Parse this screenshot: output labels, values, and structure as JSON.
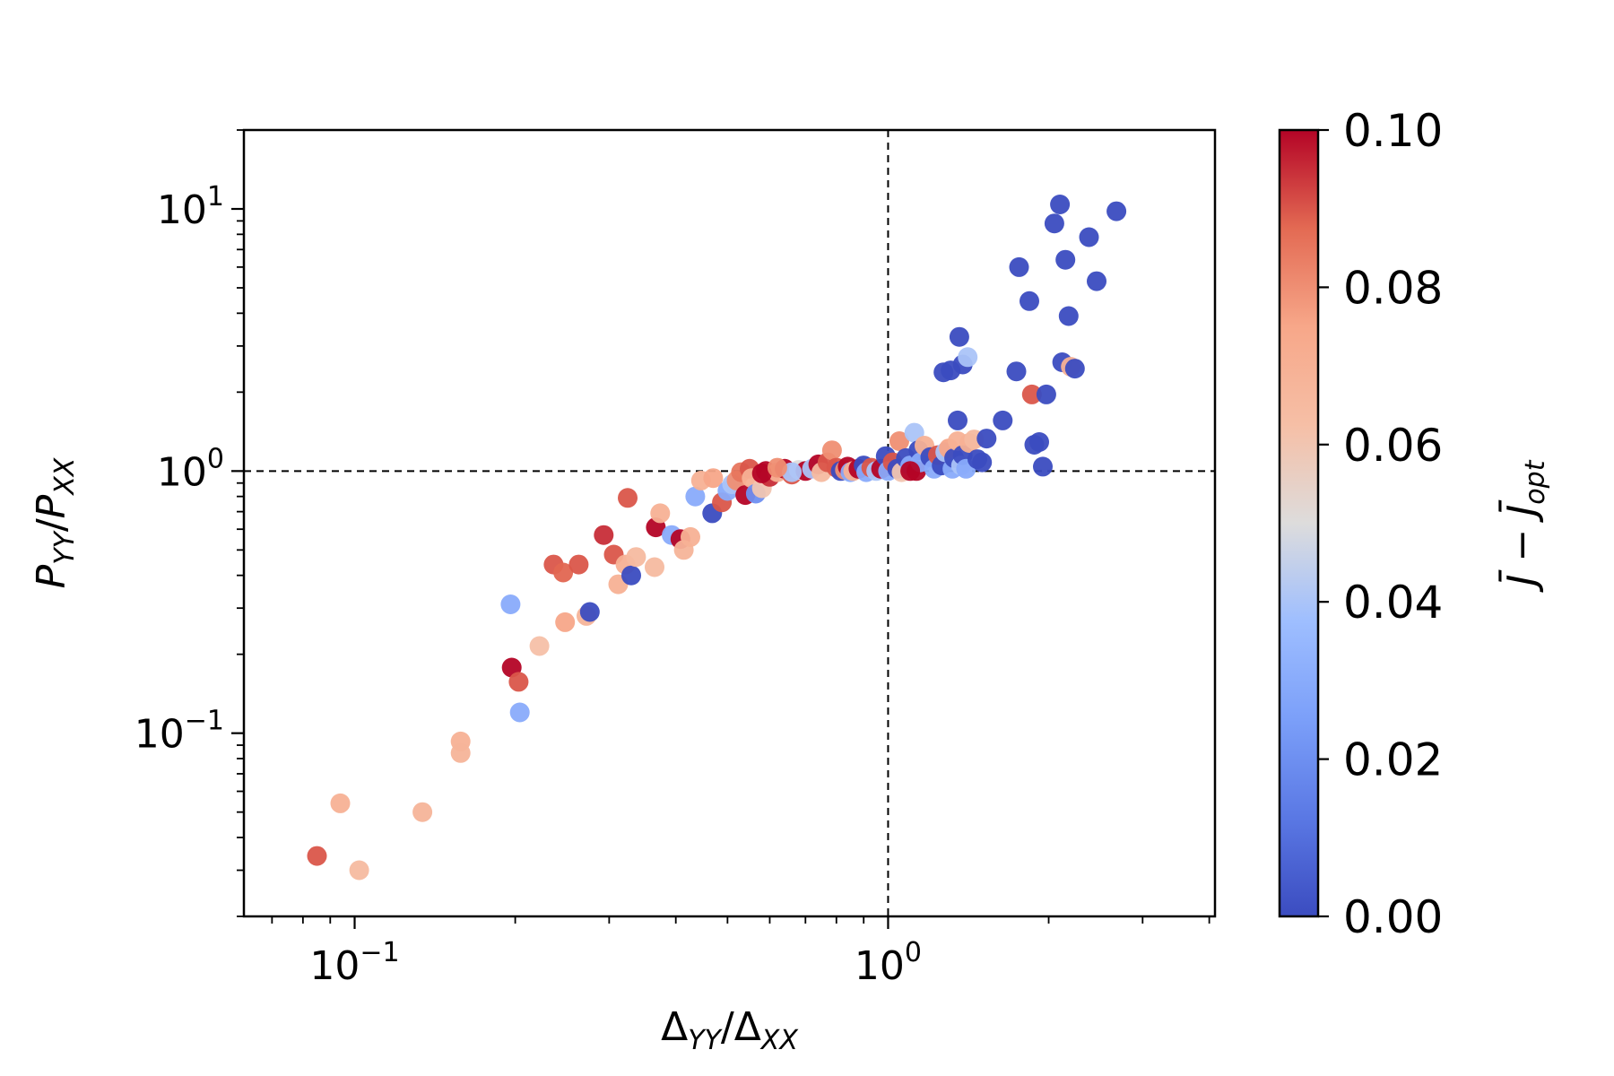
{
  "chart_data": {
    "type": "scatter",
    "xscale": "log",
    "yscale": "log",
    "xlim": [
      0.062,
      4.1
    ],
    "ylim": [
      0.02,
      20
    ],
    "xlabel": {
      "base": "Δ",
      "sub": "YY",
      "slash": "/",
      "base2": "Δ",
      "sub2": "XX"
    },
    "ylabel": {
      "base": "P",
      "sub": "YY",
      "slash": "/",
      "base2": "P",
      "sub2": "XX"
    },
    "xticks": [
      {
        "value": 0.1,
        "base": "10",
        "exp": "−1"
      },
      {
        "value": 1,
        "base": "10",
        "exp": "0"
      }
    ],
    "yticks": [
      {
        "value": 0.1,
        "base": "10",
        "exp": "−1"
      },
      {
        "value": 1,
        "base": "10",
        "exp": "0"
      },
      {
        "value": 10,
        "base": "10",
        "exp": "1"
      }
    ],
    "reference_lines": {
      "x": 1,
      "y": 1,
      "style": "dashed"
    },
    "colorbar": {
      "colormap": "coolwarm",
      "range": [
        0.0,
        0.1
      ],
      "ticks": [
        "0.00",
        "0.02",
        "0.04",
        "0.06",
        "0.08",
        "0.10"
      ],
      "label": "J̄ − J̄opt",
      "label_main": "J̄ − J̄",
      "label_sub": "opt"
    },
    "points": [
      [
        0.085,
        0.034,
        0.09
      ],
      [
        0.094,
        0.054,
        0.07
      ],
      [
        0.102,
        0.03,
        0.065
      ],
      [
        0.134,
        0.05,
        0.068
      ],
      [
        0.158,
        0.093,
        0.07
      ],
      [
        0.158,
        0.084,
        0.068
      ],
      [
        0.196,
        0.31,
        0.03
      ],
      [
        0.197,
        0.178,
        0.1
      ],
      [
        0.203,
        0.157,
        0.09
      ],
      [
        0.204,
        0.12,
        0.03
      ],
      [
        0.222,
        0.215,
        0.062
      ],
      [
        0.236,
        0.44,
        0.09
      ],
      [
        0.246,
        0.41,
        0.088
      ],
      [
        0.248,
        0.265,
        0.075
      ],
      [
        0.263,
        0.44,
        0.09
      ],
      [
        0.272,
        0.28,
        0.068
      ],
      [
        0.276,
        0.29,
        0.0
      ],
      [
        0.293,
        0.57,
        0.095
      ],
      [
        0.306,
        0.48,
        0.09
      ],
      [
        0.312,
        0.37,
        0.07
      ],
      [
        0.322,
        0.44,
        0.07
      ],
      [
        0.325,
        0.79,
        0.09
      ],
      [
        0.33,
        0.4,
        0.0
      ],
      [
        0.337,
        0.47,
        0.065
      ],
      [
        0.365,
        0.43,
        0.065
      ],
      [
        0.367,
        0.61,
        0.1
      ],
      [
        0.374,
        0.69,
        0.07
      ],
      [
        0.393,
        0.57,
        0.03
      ],
      [
        0.408,
        0.55,
        0.1
      ],
      [
        0.414,
        0.5,
        0.068
      ],
      [
        0.426,
        0.56,
        0.07
      ],
      [
        0.435,
        0.8,
        0.03
      ],
      [
        0.446,
        0.92,
        0.07
      ],
      [
        0.468,
        0.69,
        0.0
      ],
      [
        0.47,
        0.94,
        0.075
      ],
      [
        0.488,
        0.76,
        0.09
      ],
      [
        0.5,
        0.84,
        0.03
      ],
      [
        0.51,
        0.89,
        0.04
      ],
      [
        0.52,
        0.92,
        0.08
      ],
      [
        0.53,
        0.99,
        0.085
      ],
      [
        0.54,
        0.81,
        0.1
      ],
      [
        0.55,
        1.02,
        0.09
      ],
      [
        0.555,
        0.94,
        0.07
      ],
      [
        0.565,
        0.82,
        0.02
      ],
      [
        0.58,
        0.86,
        0.06
      ],
      [
        0.59,
        1.0,
        0.1
      ],
      [
        0.6,
        0.95,
        0.095
      ],
      [
        0.62,
        0.99,
        0.07
      ],
      [
        0.64,
        1.02,
        0.1
      ],
      [
        0.66,
        0.97,
        0.09
      ],
      [
        0.68,
        1.01,
        0.05
      ],
      [
        0.7,
        1.0,
        0.1
      ],
      [
        0.72,
        1.02,
        0.04
      ],
      [
        0.74,
        1.06,
        0.1
      ],
      [
        0.75,
        0.99,
        0.065
      ],
      [
        0.77,
        1.08,
        0.09
      ],
      [
        0.785,
        1.2,
        0.08
      ],
      [
        0.8,
        1.03,
        0.09
      ],
      [
        0.815,
        1.0,
        0.0
      ],
      [
        0.83,
        1.01,
        0.08
      ],
      [
        0.84,
        1.04,
        0.1
      ],
      [
        0.85,
        0.99,
        0.03
      ],
      [
        0.86,
        1.0,
        0.07
      ],
      [
        0.88,
        1.02,
        0.1
      ],
      [
        0.9,
        1.05,
        0.0
      ],
      [
        0.91,
        0.99,
        0.03
      ],
      [
        0.93,
        1.03,
        0.09
      ],
      [
        0.95,
        1.0,
        0.04
      ],
      [
        0.97,
        1.02,
        0.1
      ],
      [
        0.99,
        1.14,
        0.0
      ],
      [
        1.0,
        1.0,
        0.03
      ],
      [
        1.02,
        1.08,
        0.09
      ],
      [
        1.04,
        1.02,
        0.0
      ],
      [
        1.05,
        1.3,
        0.08
      ],
      [
        1.06,
        0.99,
        0.06
      ],
      [
        1.08,
        1.12,
        0.0
      ],
      [
        1.1,
        1.05,
        0.03
      ],
      [
        1.12,
        1.4,
        0.04
      ],
      [
        1.13,
        1.0,
        0.1
      ],
      [
        1.14,
        1.2,
        0.0
      ],
      [
        1.15,
        1.08,
        0.03
      ],
      [
        1.17,
        1.25,
        0.07
      ],
      [
        1.2,
        1.13,
        0.0
      ],
      [
        1.22,
        1.02,
        0.03
      ],
      [
        1.24,
        1.15,
        0.09
      ],
      [
        1.26,
        1.05,
        0.0
      ],
      [
        1.28,
        1.18,
        0.04
      ],
      [
        1.3,
        1.22,
        0.075
      ],
      [
        1.32,
        1.02,
        0.03
      ],
      [
        1.33,
        1.12,
        0.0
      ],
      [
        1.35,
        1.3,
        0.07
      ],
      [
        1.37,
        1.05,
        0.04
      ],
      [
        1.38,
        1.15,
        0.0
      ],
      [
        1.4,
        1.02,
        0.03
      ],
      [
        1.42,
        1.28,
        0.07
      ],
      [
        1.45,
        1.32,
        0.065
      ],
      [
        1.47,
        1.11,
        0.0
      ],
      [
        1.5,
        1.08,
        0.0
      ],
      [
        1.27,
        2.38,
        0.0
      ],
      [
        1.31,
        2.42,
        0.0
      ],
      [
        1.36,
        3.25,
        0.0
      ],
      [
        1.38,
        2.55,
        0.0
      ],
      [
        1.41,
        2.72,
        0.04
      ],
      [
        1.35,
        1.56,
        0.0
      ],
      [
        1.1,
        1.0,
        0.1
      ],
      [
        0.66,
        0.99,
        0.04
      ],
      [
        0.58,
        0.98,
        0.1
      ],
      [
        0.62,
        1.03,
        0.08
      ],
      [
        1.53,
        1.33,
        0.0
      ],
      [
        1.64,
        1.56,
        0.0
      ],
      [
        1.74,
        2.4,
        0.0
      ],
      [
        1.76,
        6.0,
        0.0
      ],
      [
        1.84,
        4.45,
        0.0
      ],
      [
        1.88,
        1.26,
        0.0
      ],
      [
        1.92,
        1.29,
        0.0
      ],
      [
        1.86,
        1.96,
        0.09
      ],
      [
        1.95,
        1.04,
        0.0
      ],
      [
        1.98,
        1.96,
        0.0
      ],
      [
        2.05,
        8.8,
        0.0
      ],
      [
        2.1,
        10.4,
        0.0
      ],
      [
        2.12,
        2.6,
        0.0
      ],
      [
        2.15,
        6.4,
        0.0
      ],
      [
        2.18,
        3.9,
        0.0
      ],
      [
        2.2,
        2.5,
        0.07
      ],
      [
        2.24,
        2.46,
        0.0
      ],
      [
        2.38,
        7.8,
        0.0
      ],
      [
        2.46,
        5.3,
        0.0
      ],
      [
        2.68,
        9.8,
        0.0
      ]
    ]
  }
}
